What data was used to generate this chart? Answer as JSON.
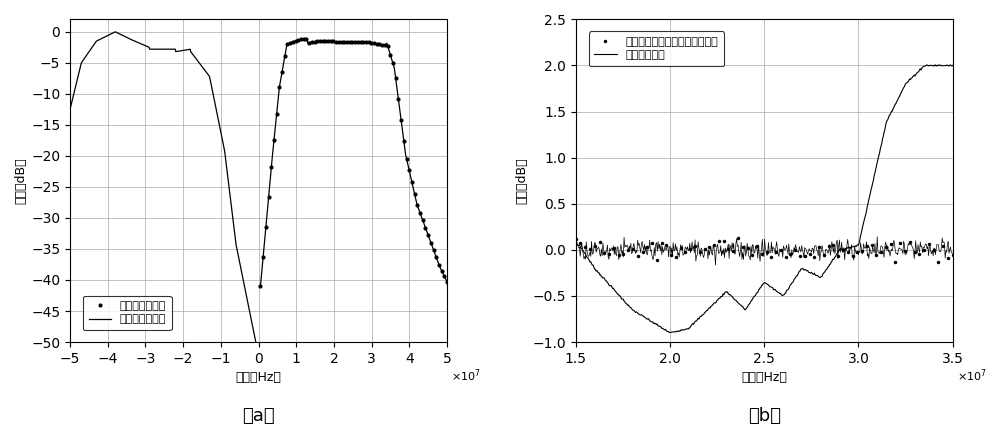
{
  "fig_width": 10.0,
  "fig_height": 4.42,
  "dpi": 100,
  "plot_a": {
    "xlim": [
      -5,
      5
    ],
    "ylim": [
      -50,
      2
    ],
    "xlabel": "频率（Hz）",
    "ylabel": "幅度（dB）",
    "xticks": [
      -5,
      -4,
      -3,
      -2,
      -1,
      0,
      1,
      2,
      3,
      4,
      5
    ],
    "yticks": [
      0,
      -5,
      -10,
      -15,
      -20,
      -25,
      -30,
      -35,
      -40,
      -45,
      -50
    ],
    "legend1": "幅频响应理论值",
    "legend2": "幅频响应逆近值",
    "label_a": "（a）"
  },
  "plot_b": {
    "xlim": [
      1.5,
      3.5
    ],
    "ylim": [
      -1,
      2.5
    ],
    "xlabel": "频率（Hz）",
    "ylabel": "幅度（dB）",
    "xticks": [
      1.5,
      2.0,
      2.5,
      3.0,
      3.5
    ],
    "yticks": [
      -1,
      -0.5,
      0,
      0.5,
      1.0,
      1.5,
      2.0,
      2.5
    ],
    "legend1": "带宽内：补偿后的幅频响应曲线",
    "legend2": "原始幅频曲线",
    "label_b": "（b）"
  }
}
